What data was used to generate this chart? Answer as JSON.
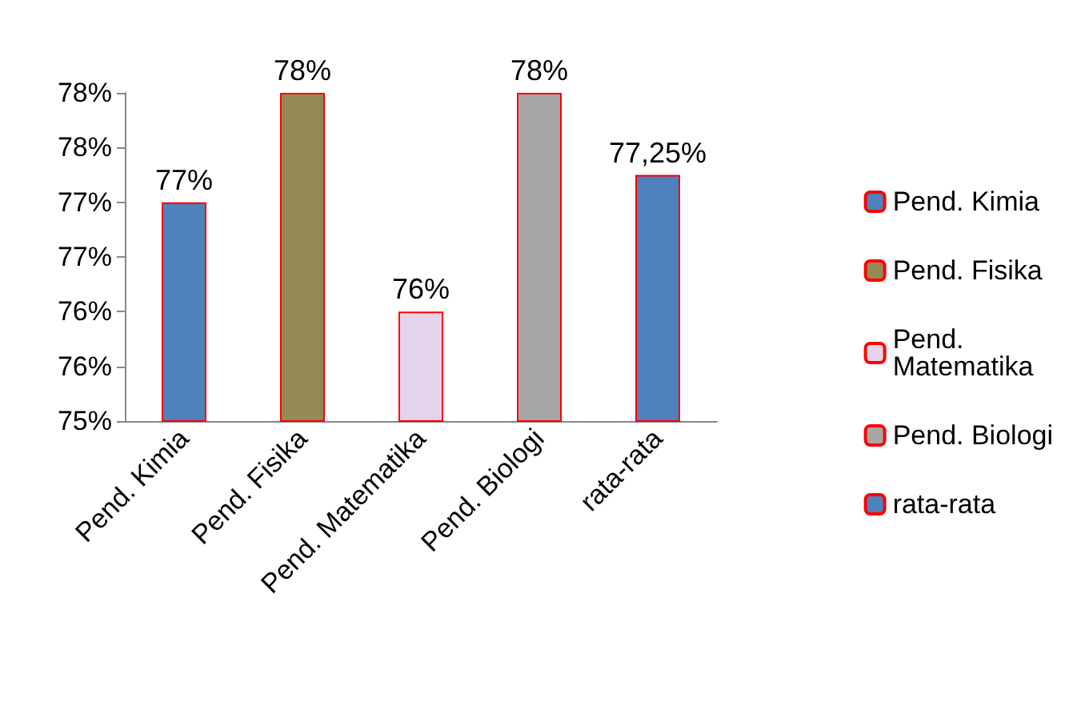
{
  "chart_data": {
    "type": "bar",
    "categories": [
      "Pend. Kimia",
      "Pend. Fisika",
      "Pend. Matematika",
      "Pend. Biologi",
      "rata-rata"
    ],
    "series": [
      {
        "name": "Pend. Kimia",
        "color": "#4f81bd",
        "values": [
          77,
          null,
          null,
          null,
          null
        ]
      },
      {
        "name": "Pend. Fisika",
        "color": "#948a54",
        "values": [
          null,
          78,
          null,
          null,
          null
        ]
      },
      {
        "name": "Pend. Matematika",
        "color": "#e4d3ea",
        "values": [
          null,
          null,
          76,
          null,
          null
        ]
      },
      {
        "name": "Pend. Biologi",
        "color": "#a6a6a6",
        "values": [
          null,
          null,
          null,
          78,
          null
        ]
      },
      {
        "name": "rata-rata",
        "color": "#4f81bd",
        "values": [
          null,
          null,
          null,
          null,
          77.25
        ]
      }
    ],
    "value_labels": [
      "77%",
      "78%",
      "76%",
      "78%",
      "77,25%"
    ],
    "ylim": [
      75,
      78
    ],
    "yticks": [
      {
        "value": 75,
        "label": "75%"
      },
      {
        "value": 75.5,
        "label": "76%"
      },
      {
        "value": 76,
        "label": "76%"
      },
      {
        "value": 76.5,
        "label": "77%"
      },
      {
        "value": 77,
        "label": "77%"
      },
      {
        "value": 77.5,
        "label": "78%"
      },
      {
        "value": 78,
        "label": "78%"
      }
    ],
    "grid": false,
    "legend": "right"
  }
}
